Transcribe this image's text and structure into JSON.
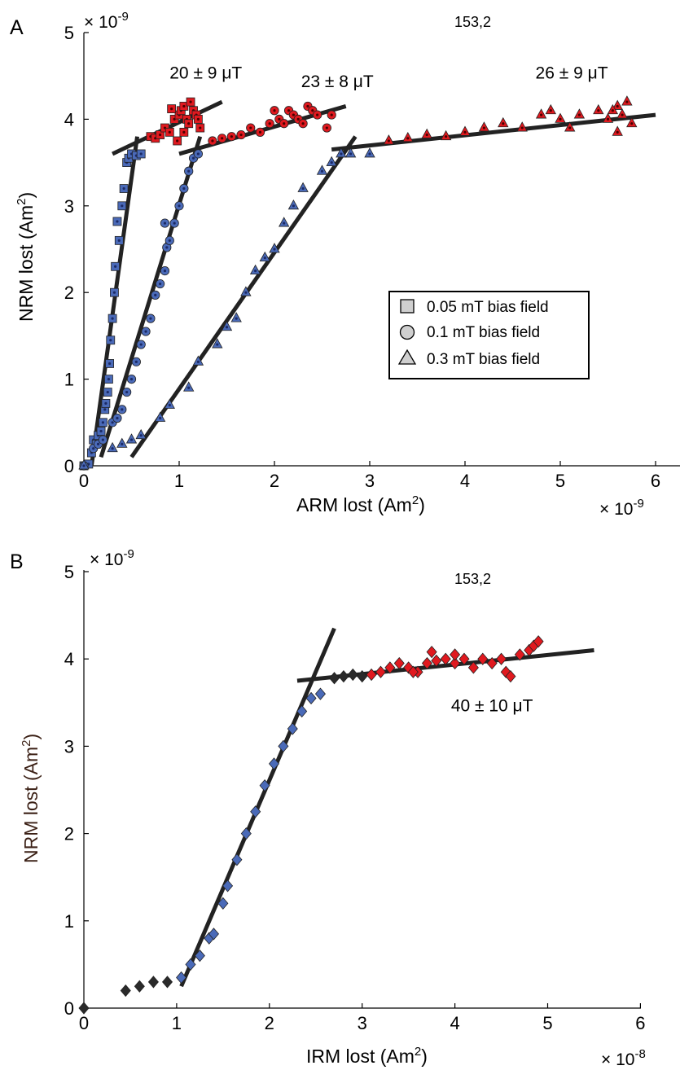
{
  "colors": {
    "blue": "#4a6ab8",
    "red": "#e0191f",
    "dark": "#2a2a2a",
    "fit_line": "#222222",
    "legend_marker": "#cfcfcf"
  },
  "chart_data": [
    {
      "panel": "A",
      "type": "scatter",
      "sample_label": "153,2",
      "xlabel": "ARM lost (Am",
      "xlabel_sup": "2",
      "xlabel_end": ")",
      "ylabel": "NRM lost (Am",
      "ylabel_sup": "2",
      "ylabel_end": ")",
      "x_exponent": "× 10",
      "x_exponent_power": "-9",
      "y_exponent": "× 10",
      "y_exponent_power": "-9",
      "xlim": [
        0,
        6
      ],
      "ylim": [
        0,
        5
      ],
      "x_ticks": [
        "0",
        "1",
        "2",
        "3",
        "4",
        "5",
        "6"
      ],
      "y_ticks": [
        "0",
        "1",
        "2",
        "3",
        "4",
        "5"
      ],
      "legend": {
        "placement": "center-right",
        "entries": [
          {
            "marker": "square",
            "label": "0.05 mT bias field"
          },
          {
            "marker": "circle",
            "label": "0.1 mT bias field"
          },
          {
            "marker": "triangle",
            "label": "0.3 mT bias field"
          }
        ]
      },
      "annotations": [
        {
          "text": "20 ± 9 μT",
          "x": 1.28,
          "y": 4.47
        },
        {
          "text": "23 ± 8 μT",
          "x": 2.66,
          "y": 4.37
        },
        {
          "text": "26 ± 9 μT",
          "x": 5.12,
          "y": 4.47
        }
      ],
      "series": [
        {
          "marker": "square",
          "points_low_blue": [
            [
              0.0,
              0.0
            ],
            [
              0.05,
              0.02
            ],
            [
              0.08,
              0.15
            ],
            [
              0.1,
              0.3
            ],
            [
              0.13,
              0.25
            ],
            [
              0.15,
              0.35
            ],
            [
              0.18,
              0.4
            ],
            [
              0.2,
              0.5
            ],
            [
              0.22,
              0.65
            ],
            [
              0.23,
              0.72
            ],
            [
              0.25,
              0.85
            ],
            [
              0.26,
              1.0
            ],
            [
              0.27,
              1.18
            ],
            [
              0.28,
              1.45
            ],
            [
              0.3,
              1.7
            ],
            [
              0.32,
              2.0
            ],
            [
              0.33,
              2.3
            ],
            [
              0.35,
              2.82
            ],
            [
              0.37,
              2.6
            ],
            [
              0.4,
              3.0
            ],
            [
              0.42,
              3.2
            ],
            [
              0.45,
              3.5
            ],
            [
              0.47,
              3.55
            ],
            [
              0.5,
              3.6
            ],
            [
              0.55,
              3.58
            ],
            [
              0.6,
              3.6
            ]
          ],
          "points_high_red": [
            [
              0.7,
              3.8
            ],
            [
              0.75,
              3.78
            ],
            [
              0.8,
              3.82
            ],
            [
              0.85,
              3.9
            ],
            [
              0.9,
              3.85
            ],
            [
              0.95,
              4.0
            ],
            [
              1.0,
              4.05
            ],
            [
              1.02,
              4.1
            ],
            [
              1.05,
              4.15
            ],
            [
              1.08,
              4.0
            ],
            [
              1.1,
              3.95
            ],
            [
              1.12,
              4.2
            ],
            [
              1.15,
              4.1
            ],
            [
              1.18,
              4.05
            ],
            [
              1.2,
              4.0
            ],
            [
              1.22,
              3.9
            ],
            [
              0.98,
              3.75
            ],
            [
              0.92,
              4.12
            ],
            [
              1.05,
              3.85
            ]
          ],
          "fit_lines": [
            {
              "x": [
                0.08,
                0.56
              ],
              "y": [
                0.0,
                3.8
              ]
            },
            {
              "x": [
                0.3,
                1.45
              ],
              "y": [
                3.6,
                4.2
              ]
            }
          ]
        },
        {
          "marker": "circle",
          "points_low_blue": [
            [
              0.0,
              0.0
            ],
            [
              0.1,
              0.2
            ],
            [
              0.15,
              0.25
            ],
            [
              0.2,
              0.3
            ],
            [
              0.3,
              0.5
            ],
            [
              0.35,
              0.55
            ],
            [
              0.4,
              0.65
            ],
            [
              0.45,
              0.85
            ],
            [
              0.5,
              1.0
            ],
            [
              0.55,
              1.2
            ],
            [
              0.6,
              1.4
            ],
            [
              0.65,
              1.55
            ],
            [
              0.7,
              1.7
            ],
            [
              0.75,
              1.97
            ],
            [
              0.8,
              2.1
            ],
            [
              0.85,
              2.25
            ],
            [
              0.87,
              2.52
            ],
            [
              0.9,
              2.6
            ],
            [
              0.95,
              2.8
            ],
            [
              1.0,
              3.0
            ],
            [
              1.05,
              3.2
            ],
            [
              1.1,
              3.4
            ],
            [
              1.15,
              3.55
            ],
            [
              1.2,
              3.6
            ],
            [
              0.85,
              2.8
            ]
          ],
          "points_high_red": [
            [
              1.35,
              3.75
            ],
            [
              1.45,
              3.78
            ],
            [
              1.55,
              3.8
            ],
            [
              1.65,
              3.82
            ],
            [
              1.75,
              3.9
            ],
            [
              1.85,
              3.85
            ],
            [
              1.95,
              3.95
            ],
            [
              2.05,
              4.0
            ],
            [
              2.15,
              4.1
            ],
            [
              2.2,
              4.05
            ],
            [
              2.25,
              4.0
            ],
            [
              2.3,
              3.95
            ],
            [
              2.35,
              4.15
            ],
            [
              2.4,
              4.1
            ],
            [
              2.45,
              4.05
            ],
            [
              2.55,
              3.9
            ],
            [
              2.6,
              4.05
            ],
            [
              2.0,
              4.1
            ],
            [
              2.1,
              3.95
            ]
          ],
          "fit_lines": [
            {
              "x": [
                0.18,
                1.22
              ],
              "y": [
                0.1,
                3.8
              ]
            },
            {
              "x": [
                1.0,
                2.75
              ],
              "y": [
                3.6,
                4.15
              ]
            }
          ]
        },
        {
          "marker": "triangle",
          "points_low_blue": [
            [
              0.0,
              0.0
            ],
            [
              0.3,
              0.2
            ],
            [
              0.4,
              0.25
            ],
            [
              0.5,
              0.3
            ],
            [
              0.6,
              0.35
            ],
            [
              0.8,
              0.55
            ],
            [
              0.9,
              0.7
            ],
            [
              1.1,
              0.9
            ],
            [
              1.2,
              1.2
            ],
            [
              1.4,
              1.4
            ],
            [
              1.5,
              1.6
            ],
            [
              1.6,
              1.7
            ],
            [
              1.7,
              2.0
            ],
            [
              1.8,
              2.25
            ],
            [
              1.9,
              2.4
            ],
            [
              2.0,
              2.5
            ],
            [
              2.1,
              2.8
            ],
            [
              2.2,
              3.0
            ],
            [
              2.3,
              3.2
            ],
            [
              2.5,
              3.4
            ],
            [
              2.6,
              3.5
            ],
            [
              2.7,
              3.6
            ],
            [
              2.8,
              3.6
            ],
            [
              3.0,
              3.6
            ]
          ],
          "points_high_red": [
            [
              3.2,
              3.75
            ],
            [
              3.4,
              3.78
            ],
            [
              3.6,
              3.82
            ],
            [
              3.8,
              3.8
            ],
            [
              4.0,
              3.85
            ],
            [
              4.2,
              3.9
            ],
            [
              4.4,
              3.95
            ],
            [
              4.6,
              3.9
            ],
            [
              4.8,
              4.05
            ],
            [
              5.0,
              4.0
            ],
            [
              5.2,
              4.05
            ],
            [
              5.4,
              4.1
            ],
            [
              5.5,
              4.0
            ],
            [
              5.6,
              4.15
            ],
            [
              5.65,
              4.05
            ],
            [
              5.7,
              4.2
            ],
            [
              5.75,
              3.95
            ],
            [
              5.1,
              3.9
            ],
            [
              4.9,
              4.1
            ],
            [
              5.55,
              4.1
            ],
            [
              5.6,
              3.85
            ]
          ],
          "fit_lines": [
            {
              "x": [
                0.5,
                2.85
              ],
              "y": [
                0.1,
                3.8
              ]
            },
            {
              "x": [
                2.6,
                6.0
              ],
              "y": [
                3.65,
                4.05
              ]
            }
          ]
        }
      ]
    },
    {
      "panel": "B",
      "type": "scatter",
      "sample_label": "153,2",
      "xlabel": "IRM lost (Am",
      "xlabel_sup": "2",
      "xlabel_end": ")",
      "ylabel": "NRM lost (Am",
      "ylabel_sup": "2",
      "ylabel_end": ")",
      "x_exponent": "× 10",
      "x_exponent_power": "-8",
      "y_exponent": "× 10",
      "y_exponent_power": "-9",
      "xlim": [
        0,
        6
      ],
      "ylim": [
        0,
        5
      ],
      "x_ticks": [
        "0",
        "1",
        "2",
        "3",
        "4",
        "5",
        "6"
      ],
      "y_ticks": [
        "0",
        "1",
        "2",
        "3",
        "4",
        "5"
      ],
      "annotations": [
        {
          "text": "40 ± 10 μT",
          "x": 4.4,
          "y": 3.4
        }
      ],
      "series": [
        {
          "marker": "diamond",
          "points_dark": [
            [
              0.0,
              0.0
            ],
            [
              0.45,
              0.2
            ],
            [
              0.6,
              0.25
            ],
            [
              0.75,
              0.3
            ],
            [
              0.9,
              0.3
            ],
            [
              2.7,
              3.78
            ],
            [
              2.8,
              3.8
            ],
            [
              2.9,
              3.82
            ],
            [
              3.0,
              3.8
            ]
          ],
          "points_low_blue": [
            [
              1.05,
              0.35
            ],
            [
              1.15,
              0.5
            ],
            [
              1.25,
              0.6
            ],
            [
              1.35,
              0.8
            ],
            [
              1.4,
              0.85
            ],
            [
              1.5,
              1.2
            ],
            [
              1.55,
              1.4
            ],
            [
              1.65,
              1.7
            ],
            [
              1.75,
              2.0
            ],
            [
              1.85,
              2.25
            ],
            [
              1.95,
              2.55
            ],
            [
              2.05,
              2.8
            ],
            [
              2.15,
              3.0
            ],
            [
              2.25,
              3.2
            ],
            [
              2.35,
              3.4
            ],
            [
              2.45,
              3.55
            ],
            [
              2.55,
              3.6
            ]
          ],
          "points_high_red": [
            [
              3.1,
              3.82
            ],
            [
              3.2,
              3.85
            ],
            [
              3.3,
              3.9
            ],
            [
              3.4,
              3.95
            ],
            [
              3.5,
              3.9
            ],
            [
              3.6,
              3.85
            ],
            [
              3.7,
              3.95
            ],
            [
              3.75,
              4.08
            ],
            [
              3.8,
              3.98
            ],
            [
              3.9,
              4.0
            ],
            [
              4.0,
              3.95
            ],
            [
              4.1,
              4.0
            ],
            [
              4.2,
              3.9
            ],
            [
              4.3,
              4.0
            ],
            [
              4.4,
              3.95
            ],
            [
              4.5,
              4.0
            ],
            [
              4.55,
              3.85
            ],
            [
              4.6,
              3.8
            ],
            [
              4.7,
              4.05
            ],
            [
              4.8,
              4.1
            ],
            [
              4.85,
              4.15
            ],
            [
              4.9,
              4.2
            ],
            [
              3.55,
              3.85
            ],
            [
              4.0,
              4.05
            ]
          ],
          "fit_lines": [
            {
              "x": [
                1.05,
                2.7
              ],
              "y": [
                0.25,
                4.35
              ]
            },
            {
              "x": [
                2.3,
                5.5
              ],
              "y": [
                3.75,
                4.1
              ]
            }
          ]
        }
      ]
    }
  ]
}
